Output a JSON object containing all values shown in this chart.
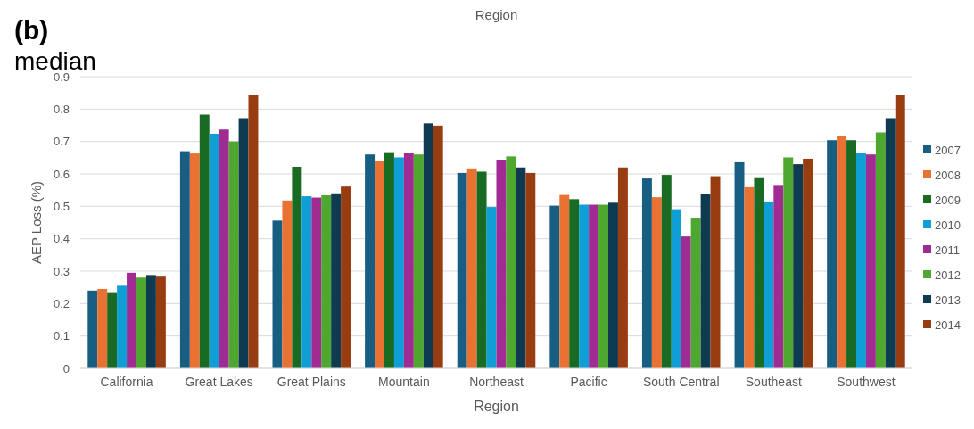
{
  "chart_data": {
    "type": "bar",
    "title": "(b)",
    "subtitle": "median",
    "xlabel": "Region",
    "ylabel": "AEP Loss (%)",
    "annotations": [
      "Region"
    ],
    "categories": [
      "California",
      "Great Lakes",
      "Great Plains",
      "Mountain",
      "Northeast",
      "Pacific",
      "South Central",
      "Southeast",
      "Southwest"
    ],
    "series": [
      {
        "name": "2007",
        "color": "#175e82",
        "values": [
          0.24,
          0.67,
          0.456,
          0.66,
          0.603,
          0.502,
          0.586,
          0.636,
          0.704
        ]
      },
      {
        "name": "2008",
        "color": "#e97132",
        "values": [
          0.245,
          0.663,
          0.518,
          0.641,
          0.617,
          0.535,
          0.528,
          0.559,
          0.718
        ]
      },
      {
        "name": "2009",
        "color": "#196b24",
        "values": [
          0.235,
          0.783,
          0.622,
          0.667,
          0.607,
          0.522,
          0.597,
          0.587,
          0.704
        ]
      },
      {
        "name": "2010",
        "color": "#0f9ed5",
        "values": [
          0.255,
          0.724,
          0.531,
          0.651,
          0.498,
          0.505,
          0.491,
          0.515,
          0.664
        ]
      },
      {
        "name": "2011",
        "color": "#a02b93",
        "values": [
          0.295,
          0.737,
          0.527,
          0.664,
          0.644,
          0.505,
          0.407,
          0.566,
          0.66
        ]
      },
      {
        "name": "2012",
        "color": "#4ea72e",
        "values": [
          0.28,
          0.7,
          0.534,
          0.66,
          0.654,
          0.505,
          0.465,
          0.651,
          0.728
        ]
      },
      {
        "name": "2013",
        "color": "#0e3a52",
        "values": [
          0.288,
          0.772,
          0.54,
          0.756,
          0.62,
          0.511,
          0.538,
          0.63,
          0.772
        ]
      },
      {
        "name": "2014",
        "color": "#983c11",
        "values": [
          0.283,
          0.843,
          0.561,
          0.749,
          0.603,
          0.62,
          0.593,
          0.647,
          0.843
        ]
      }
    ],
    "ylim": [
      0,
      0.9
    ],
    "yticks": [
      0,
      0.1,
      0.2,
      0.3,
      0.4,
      0.5,
      0.6,
      0.7,
      0.8,
      0.9
    ],
    "grid": "y",
    "legend": "right"
  }
}
